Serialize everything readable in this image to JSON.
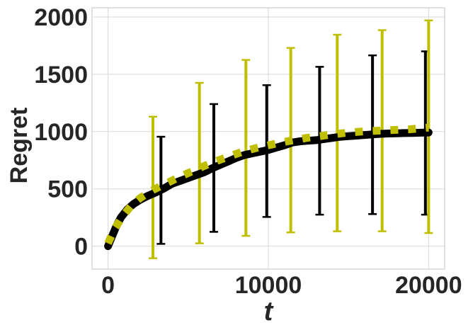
{
  "chart_data": {
    "type": "line",
    "title": "",
    "xlabel": "t",
    "ylabel": "Regret",
    "xlim": [
      -1000,
      21000
    ],
    "ylim": [
      -200,
      2080
    ],
    "grid": true,
    "legend": "none",
    "x_ticks": [
      0,
      10000,
      20000
    ],
    "x_tick_labels": [
      "0",
      "10000",
      "20000"
    ],
    "y_ticks": [
      0,
      500,
      1000,
      1500,
      2000
    ],
    "y_tick_labels": [
      "0",
      "500",
      "1000",
      "1500",
      "2000"
    ],
    "series": [
      {
        "style": "solid",
        "color": "#000000",
        "x": [
          0,
          200,
          500,
          800,
          1200,
          1600,
          2000,
          2500,
          3000,
          3500,
          4000,
          4500,
          5000,
          5500,
          6000,
          6500,
          7000,
          7500,
          8000,
          8500,
          9000,
          9500,
          10000,
          10500,
          11000,
          11500,
          12000,
          12500,
          13000,
          13500,
          14000,
          14500,
          15000,
          15500,
          16000,
          16500,
          17000,
          17500,
          18000,
          18500,
          19000,
          19500,
          20000
        ],
        "y": [
          0,
          70,
          170,
          250,
          320,
          370,
          405,
          440,
          470,
          505,
          545,
          570,
          595,
          620,
          645,
          680,
          710,
          740,
          770,
          795,
          810,
          825,
          840,
          860,
          880,
          905,
          915,
          920,
          925,
          935,
          945,
          955,
          960,
          965,
          970,
          975,
          980,
          983,
          985,
          987,
          988,
          990,
          992
        ],
        "errorbars": {
          "x": [
            3300,
            6600,
            9900,
            13200,
            16500,
            19800
          ],
          "lower": [
            20,
            125,
            255,
            275,
            280,
            275
          ],
          "upper": [
            955,
            1240,
            1405,
            1565,
            1665,
            1700
          ]
        }
      },
      {
        "style": "dotted",
        "color": "#bfbf00",
        "x": [
          0,
          400,
          900,
          1400,
          2000,
          2800,
          3600,
          4400,
          5200,
          6000,
          6800,
          7600,
          8400,
          9200,
          10000,
          10800,
          11600,
          12400,
          13200,
          14000,
          14800,
          15600,
          16400,
          17200,
          18000,
          18800,
          19600,
          20000
        ],
        "y": [
          25,
          150,
          260,
          345,
          420,
          490,
          545,
          600,
          650,
          700,
          745,
          785,
          825,
          855,
          880,
          905,
          925,
          945,
          960,
          975,
          988,
          998,
          1005,
          1010,
          1015,
          1020,
          1030,
          1035
        ],
        "errorbars": {
          "x": [
            2800,
            5700,
            8600,
            11400,
            14300,
            17100,
            20000
          ],
          "lower": [
            -105,
            25,
            90,
            120,
            130,
            130,
            115
          ],
          "upper": [
            1130,
            1425,
            1625,
            1730,
            1845,
            1885,
            1970
          ]
        }
      }
    ]
  }
}
